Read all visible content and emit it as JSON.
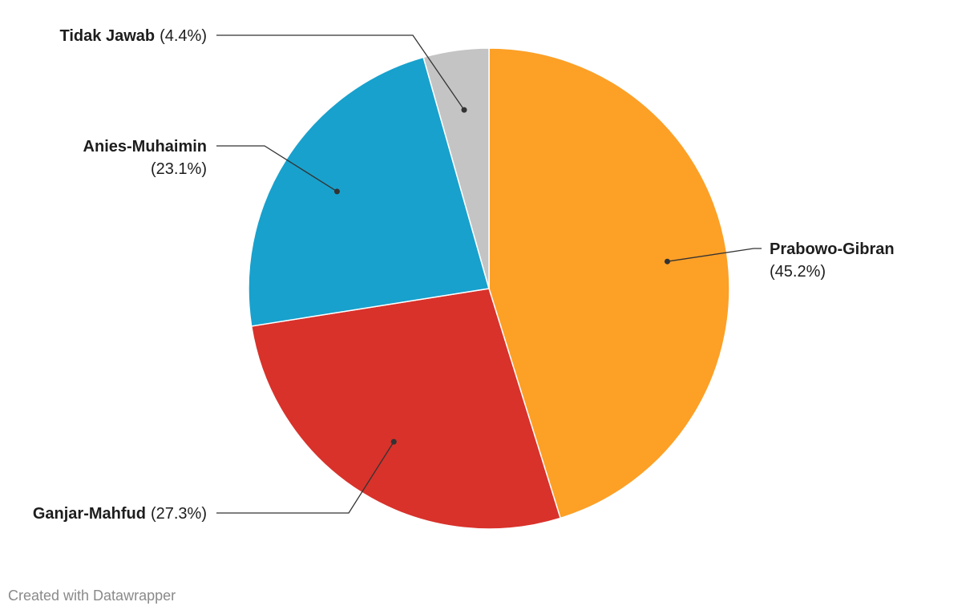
{
  "chart_data": {
    "type": "pie",
    "categories": [
      "Prabowo-Gibran",
      "Ganjar-Mahfud",
      "Anies-Muhaimin",
      "Tidak Jawab"
    ],
    "values": [
      45.2,
      27.3,
      23.1,
      4.4
    ],
    "value_labels": [
      "(45.2%)",
      "(27.3%)",
      "(23.1%)",
      "(4.4%)"
    ],
    "colors": [
      "#fda026",
      "#d8322b",
      "#18a1cd",
      "#c4c4c4"
    ],
    "credit": "Created with Datawrapper"
  }
}
